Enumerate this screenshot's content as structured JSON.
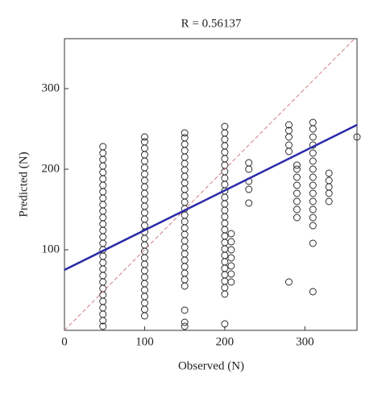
{
  "chart_data": {
    "type": "scatter",
    "title": "R = 0.56137",
    "x_label": "Observed (N)",
    "y_label": "Predicted (N)",
    "xlim": [
      0,
      365
    ],
    "ylim": [
      0,
      362
    ],
    "xticks": [
      0,
      100,
      200,
      300
    ],
    "yticks": [
      100,
      200,
      300
    ],
    "marker_color": "#222222",
    "columns": [
      {
        "x": 48,
        "values": [
          5,
          12,
          20,
          28,
          36,
          44,
          52,
          60,
          68,
          76,
          84,
          92,
          100,
          108,
          116,
          124,
          132,
          140,
          148,
          156,
          164,
          172,
          180,
          188,
          196,
          204,
          212,
          220,
          228
        ]
      },
      {
        "x": 100,
        "values": [
          18,
          26,
          34,
          42,
          50,
          58,
          66,
          74,
          82,
          90,
          98,
          106,
          114,
          122,
          130,
          138,
          146,
          154,
          162,
          170,
          178,
          186,
          194,
          202,
          210,
          218,
          226,
          234,
          240
        ]
      },
      {
        "x": 150,
        "values": [
          5,
          10,
          25,
          55,
          63,
          71,
          79,
          87,
          95,
          103,
          111,
          119,
          127,
          135,
          143,
          151,
          159,
          167,
          175,
          183,
          191,
          199,
          207,
          215,
          223,
          231,
          239,
          245
        ]
      },
      {
        "x": 200,
        "values": [
          8,
          45,
          53,
          61,
          69,
          77,
          85,
          93,
          101,
          109,
          117,
          125,
          133,
          141,
          149,
          157,
          165,
          173,
          181,
          189,
          197,
          205,
          213,
          221,
          229,
          237,
          245,
          253
        ]
      },
      {
        "x": 208,
        "values": [
          60,
          70,
          80,
          90,
          100,
          110,
          120
        ]
      },
      {
        "x": 230,
        "values": [
          158,
          175,
          185,
          200,
          208
        ]
      },
      {
        "x": 280,
        "values": [
          60,
          222,
          230,
          240,
          248,
          255
        ]
      },
      {
        "x": 290,
        "values": [
          140,
          150,
          160,
          170,
          180,
          190,
          200,
          205
        ]
      },
      {
        "x": 310,
        "values": [
          48,
          108,
          130,
          140,
          150,
          160,
          170,
          180,
          190,
          200,
          210,
          220,
          230,
          240,
          250,
          258
        ]
      },
      {
        "x": 330,
        "values": [
          160,
          170,
          178,
          186,
          195
        ]
      },
      {
        "x": 365,
        "values": [
          240
        ]
      }
    ],
    "lines": [
      {
        "x": [
          0,
          362
        ],
        "values": [
          0,
          362
        ],
        "color": "#d08080",
        "dash": true
      },
      {
        "x": [
          0,
          365
        ],
        "values": [
          75,
          255
        ],
        "color": "#2a2aa8",
        "dash": false
      }
    ]
  }
}
